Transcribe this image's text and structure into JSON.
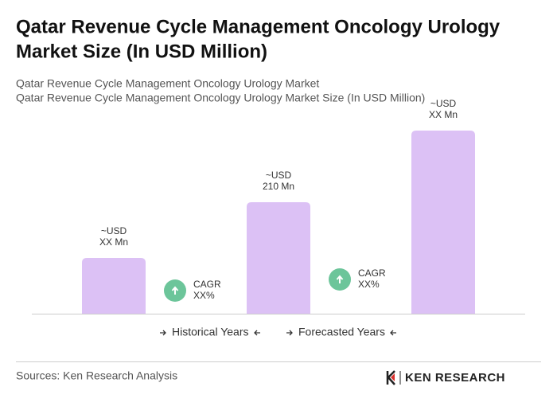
{
  "chart_data": {
    "type": "bar",
    "title": [
      "Qatar Revenue Cycle Management Oncology Urology",
      "Market Size (In USD Million)"
    ],
    "subtitle": [
      "Qatar Revenue Cycle Management Oncology Urology Market",
      "Qatar Revenue Cycle Management Oncology Urology Market Size (In USD Million)"
    ],
    "values": [
      105,
      210,
      345
    ],
    "value_labels": [
      [
        "~USD",
        "XX Mn"
      ],
      [
        "~USD",
        "210 Mn"
      ],
      [
        "~USD",
        "XX Mn"
      ]
    ],
    "color": "#dcc1f5",
    "annotations": [
      [
        "CAGR",
        "XX%"
      ],
      [
        "CAGR",
        "XX%"
      ]
    ],
    "legend": [
      "Historical Years",
      "Forecasted Years"
    ],
    "source": "Sources: Ken Research Analysis"
  },
  "logo": "KEN RESEARCH"
}
